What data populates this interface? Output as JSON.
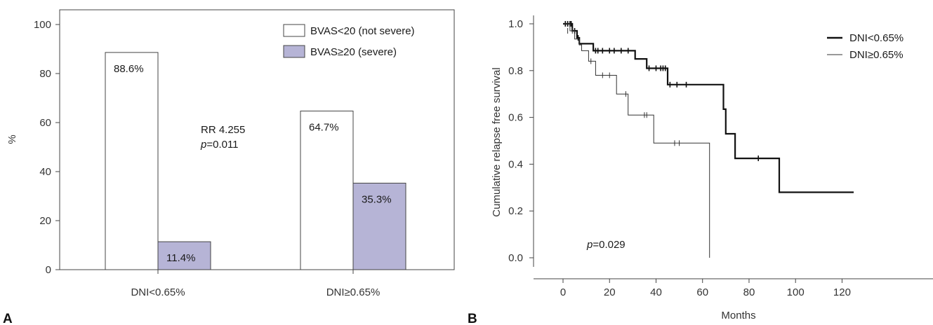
{
  "chart_data": [
    {
      "type": "bar",
      "panel": "A",
      "categories": [
        "DNI<0.65%",
        "DNI≥0.65%"
      ],
      "series": [
        {
          "name": "BVAS<20 (not severe)",
          "values": [
            88.6,
            64.7
          ],
          "labels": [
            "88.6%",
            "64.7%"
          ],
          "color": "#ffffff"
        },
        {
          "name": "BVAS≥20 (severe)",
          "values": [
            11.4,
            35.3
          ],
          "labels": [
            "11.4%",
            "35.3%"
          ],
          "color": "#b6b4d6"
        }
      ],
      "ylabel": "%",
      "ylim": [
        0,
        100
      ],
      "yticks": [
        0,
        20,
        40,
        60,
        80,
        100
      ],
      "annotation": {
        "line1": "RR 4.255",
        "p_symbol": "p",
        "p_value": "=0.011"
      },
      "legend": "top-right",
      "grid": false
    },
    {
      "type": "line",
      "panel": "B",
      "ylabel": "Cumulative relapse free survival",
      "xlabel": "Months",
      "xlim": [
        0,
        125
      ],
      "ylim": [
        0,
        1.0
      ],
      "xticks": [
        0,
        20,
        40,
        60,
        80,
        100,
        120
      ],
      "yticks": [
        "0.0",
        "0.2",
        "0.4",
        "0.6",
        "0.8",
        "1.0"
      ],
      "legend": "top-right",
      "grid": false,
      "annotation": {
        "p_symbol": "p",
        "p_value": "=0.029"
      },
      "series": [
        {
          "name": "DNI<0.65%",
          "style": "thick",
          "steps": [
            [
              0,
              1.0
            ],
            [
              4,
              0.97
            ],
            [
              6,
              0.94
            ],
            [
              7,
              0.915
            ],
            [
              13,
              0.885
            ],
            [
              31,
              0.85
            ],
            [
              36,
              0.81
            ],
            [
              45,
              0.74
            ],
            [
              69,
              0.635
            ],
            [
              70,
              0.53
            ],
            [
              74,
              0.425
            ],
            [
              93,
              0.28
            ],
            [
              125,
              0.28
            ]
          ],
          "censored": [
            [
              1,
              1.0
            ],
            [
              2,
              1.0
            ],
            [
              3,
              1.0
            ],
            [
              3.5,
              1.0
            ],
            [
              5,
              0.97
            ],
            [
              6.5,
              0.94
            ],
            [
              14,
              0.885
            ],
            [
              15,
              0.885
            ],
            [
              17,
              0.885
            ],
            [
              20,
              0.885
            ],
            [
              22,
              0.885
            ],
            [
              25,
              0.885
            ],
            [
              28,
              0.885
            ],
            [
              37,
              0.81
            ],
            [
              40,
              0.81
            ],
            [
              42,
              0.81
            ],
            [
              43,
              0.81
            ],
            [
              44,
              0.81
            ],
            [
              46,
              0.74
            ],
            [
              49,
              0.74
            ],
            [
              53,
              0.74
            ],
            [
              84,
              0.425
            ]
          ]
        },
        {
          "name": "DNI≥0.65%",
          "style": "thin",
          "steps": [
            [
              0,
              1.0
            ],
            [
              3,
              0.97
            ],
            [
              5,
              0.935
            ],
            [
              7,
              0.91
            ],
            [
              8,
              0.885
            ],
            [
              11,
              0.84
            ],
            [
              14,
              0.78
            ],
            [
              23,
              0.7
            ],
            [
              28,
              0.61
            ],
            [
              39,
              0.49
            ],
            [
              63,
              0.0
            ]
          ],
          "censored": [
            [
              2,
              0.97
            ],
            [
              4,
              0.97
            ],
            [
              12,
              0.84
            ],
            [
              17,
              0.78
            ],
            [
              20,
              0.78
            ],
            [
              27,
              0.7
            ],
            [
              35,
              0.61
            ],
            [
              36,
              0.61
            ],
            [
              48,
              0.49
            ],
            [
              50,
              0.49
            ]
          ]
        }
      ]
    }
  ]
}
